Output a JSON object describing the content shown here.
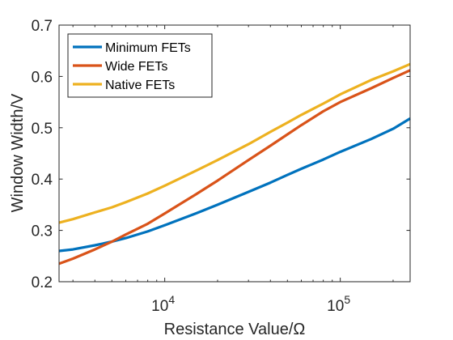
{
  "chart_data": {
    "type": "line",
    "xlabel": "Resistance Value/Ω",
    "ylabel": "Window Width/V",
    "xscale": "log",
    "xlim": [
      2500,
      250000
    ],
    "ylim": [
      0.2,
      0.7
    ],
    "y_ticks": [
      "0.2",
      "0.3",
      "0.4",
      "0.5",
      "0.6",
      "0.7"
    ],
    "x_ticks": [
      {
        "value": 10000,
        "base": "10",
        "exp": "4"
      },
      {
        "value": 100000,
        "base": "10",
        "exp": "5"
      }
    ],
    "grid": false,
    "legend_position": "top-left",
    "series": [
      {
        "name": "Minimum FETs",
        "color": "#0072BD",
        "points": [
          [
            2500,
            0.26
          ],
          [
            3000,
            0.263
          ],
          [
            4000,
            0.271
          ],
          [
            5000,
            0.278
          ],
          [
            6000,
            0.285
          ],
          [
            8000,
            0.298
          ],
          [
            10000,
            0.31
          ],
          [
            15000,
            0.333
          ],
          [
            20000,
            0.35
          ],
          [
            30000,
            0.375
          ],
          [
            40000,
            0.393
          ],
          [
            50000,
            0.408
          ],
          [
            60000,
            0.42
          ],
          [
            80000,
            0.438
          ],
          [
            100000,
            0.453
          ],
          [
            150000,
            0.478
          ],
          [
            200000,
            0.498
          ],
          [
            250000,
            0.518
          ]
        ]
      },
      {
        "name": "Wide FETs",
        "color": "#D95319",
        "points": [
          [
            2500,
            0.235
          ],
          [
            3000,
            0.245
          ],
          [
            4000,
            0.263
          ],
          [
            5000,
            0.278
          ],
          [
            6000,
            0.292
          ],
          [
            8000,
            0.313
          ],
          [
            10000,
            0.333
          ],
          [
            15000,
            0.37
          ],
          [
            20000,
            0.397
          ],
          [
            30000,
            0.437
          ],
          [
            40000,
            0.465
          ],
          [
            50000,
            0.487
          ],
          [
            60000,
            0.505
          ],
          [
            80000,
            0.532
          ],
          [
            100000,
            0.55
          ],
          [
            150000,
            0.577
          ],
          [
            200000,
            0.597
          ],
          [
            250000,
            0.612
          ]
        ]
      },
      {
        "name": "Native FETs",
        "color": "#EDB120",
        "points": [
          [
            2500,
            0.315
          ],
          [
            3000,
            0.322
          ],
          [
            4000,
            0.335
          ],
          [
            5000,
            0.345
          ],
          [
            6000,
            0.355
          ],
          [
            8000,
            0.372
          ],
          [
            10000,
            0.387
          ],
          [
            15000,
            0.416
          ],
          [
            20000,
            0.437
          ],
          [
            30000,
            0.468
          ],
          [
            40000,
            0.492
          ],
          [
            50000,
            0.51
          ],
          [
            60000,
            0.525
          ],
          [
            80000,
            0.547
          ],
          [
            100000,
            0.565
          ],
          [
            150000,
            0.593
          ],
          [
            200000,
            0.61
          ],
          [
            250000,
            0.624
          ]
        ]
      }
    ]
  }
}
